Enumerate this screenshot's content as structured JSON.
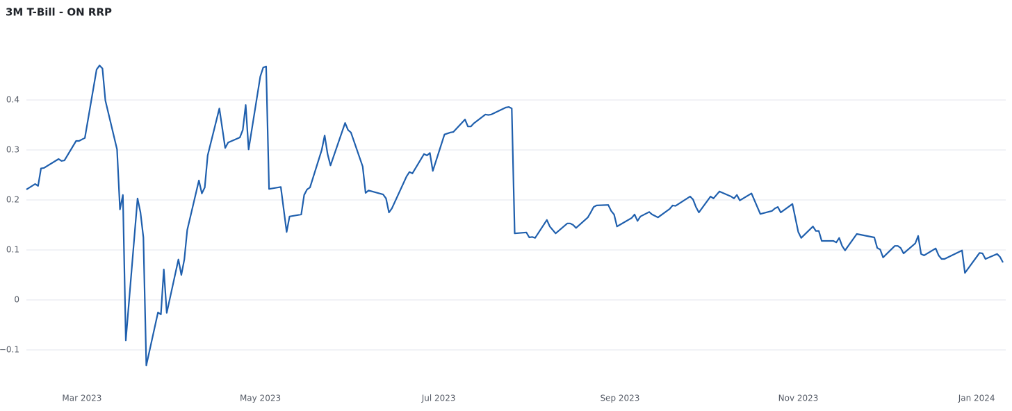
{
  "chart_data": {
    "type": "line",
    "title": "3M T-Bill - ON RRP",
    "x": [
      "2023-02-10",
      "2023-02-13",
      "2023-02-14",
      "2023-02-15",
      "2023-02-16",
      "2023-02-21",
      "2023-02-22",
      "2023-02-23",
      "2023-02-27",
      "2023-02-28",
      "2023-03-02",
      "2023-03-06",
      "2023-03-07",
      "2023-03-08",
      "2023-03-09",
      "2023-03-13",
      "2023-03-14",
      "2023-03-15",
      "2023-03-16",
      "2023-03-20",
      "2023-03-21",
      "2023-03-22",
      "2023-03-23",
      "2023-03-27",
      "2023-03-28",
      "2023-03-29",
      "2023-03-30",
      "2023-04-03",
      "2023-04-04",
      "2023-04-05",
      "2023-04-06",
      "2023-04-10",
      "2023-04-11",
      "2023-04-12",
      "2023-04-13",
      "2023-04-17",
      "2023-04-19",
      "2023-04-20",
      "2023-04-24",
      "2023-04-25",
      "2023-04-26",
      "2023-04-27",
      "2023-05-01",
      "2023-05-02",
      "2023-05-03",
      "2023-05-04",
      "2023-05-08",
      "2023-05-10",
      "2023-05-11",
      "2023-05-15",
      "2023-05-16",
      "2023-05-17",
      "2023-05-18",
      "2023-05-22",
      "2023-05-23",
      "2023-05-24",
      "2023-05-25",
      "2023-05-30",
      "2023-05-31",
      "2023-06-01",
      "2023-06-05",
      "2023-06-06",
      "2023-06-07",
      "2023-06-12",
      "2023-06-13",
      "2023-06-14",
      "2023-06-15",
      "2023-06-20",
      "2023-06-21",
      "2023-06-22",
      "2023-06-26",
      "2023-06-27",
      "2023-06-28",
      "2023-06-29",
      "2023-07-03",
      "2023-07-05",
      "2023-07-06",
      "2023-07-10",
      "2023-07-11",
      "2023-07-12",
      "2023-07-13",
      "2023-07-17",
      "2023-07-18",
      "2023-07-19",
      "2023-07-24",
      "2023-07-25",
      "2023-07-26",
      "2023-07-27",
      "2023-07-31",
      "2023-08-01",
      "2023-08-02",
      "2023-08-03",
      "2023-08-07",
      "2023-08-08",
      "2023-08-10",
      "2023-08-14",
      "2023-08-15",
      "2023-08-16",
      "2023-08-17",
      "2023-08-21",
      "2023-08-22",
      "2023-08-23",
      "2023-08-24",
      "2023-08-28",
      "2023-08-29",
      "2023-08-30",
      "2023-08-31",
      "2023-09-05",
      "2023-09-06",
      "2023-09-07",
      "2023-09-08",
      "2023-09-11",
      "2023-09-12",
      "2023-09-13",
      "2023-09-14",
      "2023-09-18",
      "2023-09-19",
      "2023-09-20",
      "2023-09-25",
      "2023-09-26",
      "2023-09-27",
      "2023-09-28",
      "2023-10-02",
      "2023-10-03",
      "2023-10-05",
      "2023-10-09",
      "2023-10-10",
      "2023-10-11",
      "2023-10-12",
      "2023-10-16",
      "2023-10-19",
      "2023-10-23",
      "2023-10-24",
      "2023-10-25",
      "2023-10-26",
      "2023-10-30",
      "2023-11-01",
      "2023-11-02",
      "2023-11-06",
      "2023-11-07",
      "2023-11-08",
      "2023-11-09",
      "2023-11-13",
      "2023-11-14",
      "2023-11-15",
      "2023-11-16",
      "2023-11-17",
      "2023-11-21",
      "2023-11-27",
      "2023-11-28",
      "2023-11-29",
      "2023-11-30",
      "2023-12-04",
      "2023-12-05",
      "2023-12-06",
      "2023-12-07",
      "2023-12-11",
      "2023-12-12",
      "2023-12-13",
      "2023-12-14",
      "2023-12-18",
      "2023-12-19",
      "2023-12-20",
      "2023-12-21",
      "2023-12-27",
      "2023-12-28",
      "2024-01-02",
      "2024-01-03",
      "2024-01-04",
      "2024-01-08",
      "2024-01-09",
      "2024-01-10"
    ],
    "series": [
      {
        "color": "#1f5fad",
        "values": [
          0.221,
          0.232,
          0.228,
          0.263,
          0.264,
          0.282,
          0.278,
          0.279,
          0.318,
          0.318,
          0.324,
          0.461,
          0.469,
          0.463,
          0.399,
          0.301,
          0.181,
          0.21,
          -0.081,
          0.203,
          0.175,
          0.125,
          -0.131,
          -0.025,
          -0.029,
          0.061,
          -0.026,
          0.081,
          0.05,
          0.081,
          0.14,
          0.239,
          0.213,
          0.225,
          0.289,
          0.383,
          0.304,
          0.315,
          0.325,
          0.34,
          0.39,
          0.301,
          0.447,
          0.465,
          0.467,
          0.222,
          0.226,
          0.136,
          0.167,
          0.171,
          0.21,
          0.221,
          0.225,
          0.3,
          0.329,
          0.292,
          0.269,
          0.354,
          0.34,
          0.335,
          0.267,
          0.214,
          0.219,
          0.211,
          0.203,
          0.175,
          0.183,
          0.247,
          0.256,
          0.253,
          0.292,
          0.289,
          0.294,
          0.258,
          0.331,
          0.335,
          0.336,
          0.361,
          0.347,
          0.347,
          0.353,
          0.371,
          0.37,
          0.371,
          0.385,
          0.386,
          0.383,
          0.133,
          0.135,
          0.125,
          0.126,
          0.124,
          0.16,
          0.147,
          0.133,
          0.153,
          0.153,
          0.15,
          0.144,
          0.165,
          0.175,
          0.186,
          0.189,
          0.19,
          0.178,
          0.171,
          0.147,
          0.164,
          0.171,
          0.158,
          0.167,
          0.176,
          0.171,
          0.168,
          0.165,
          0.182,
          0.189,
          0.188,
          0.207,
          0.201,
          0.186,
          0.175,
          0.207,
          0.203,
          0.217,
          0.207,
          0.203,
          0.21,
          0.199,
          0.213,
          0.172,
          0.178,
          0.183,
          0.186,
          0.175,
          0.192,
          0.136,
          0.124,
          0.147,
          0.138,
          0.138,
          0.118,
          0.118,
          0.115,
          0.124,
          0.108,
          0.099,
          0.132,
          0.125,
          0.104,
          0.101,
          0.085,
          0.108,
          0.108,
          0.104,
          0.093,
          0.113,
          0.128,
          0.092,
          0.089,
          0.103,
          0.089,
          0.082,
          0.082,
          0.099,
          0.054,
          0.094,
          0.093,
          0.082,
          0.092,
          0.086,
          0.075
        ]
      }
    ],
    "xlim": [
      "2023-02-10",
      "2024-01-10"
    ],
    "xticks": [
      {
        "value": "2023-03-01",
        "label": "Mar 2023"
      },
      {
        "value": "2023-05-01",
        "label": "May 2023"
      },
      {
        "value": "2023-07-01",
        "label": "Jul 2023"
      },
      {
        "value": "2023-09-01",
        "label": "Sep 2023"
      },
      {
        "value": "2023-11-01",
        "label": "Nov 2023"
      },
      {
        "value": "2024-01-01",
        "label": "Jan 2024"
      }
    ],
    "ylim": [
      -0.15,
      0.55
    ],
    "yticks": [
      {
        "value": -0.1,
        "label": "−0.1"
      },
      0,
      0.1,
      0.2,
      0.3,
      0.4
    ],
    "grid": true
  }
}
